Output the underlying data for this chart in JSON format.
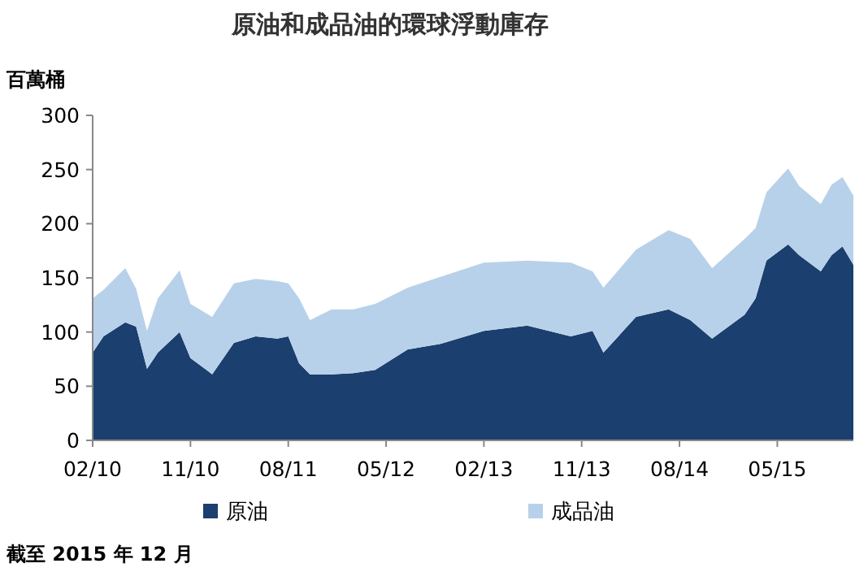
{
  "chart_data": {
    "type": "area",
    "stacked": true,
    "title": "原油和成品油的環球浮動庫存",
    "ylabel": "百萬桶",
    "annotations": [
      "截至 2015 年 12 月"
    ],
    "x": [
      "2010-02",
      "2010-03",
      "2010-05",
      "2010-06",
      "2010-07",
      "2010-08",
      "2010-10",
      "2010-11",
      "2011-01",
      "2011-03",
      "2011-05",
      "2011-07",
      "2011-08",
      "2011-09",
      "2011-10",
      "2011-12",
      "2012-02",
      "2012-04",
      "2012-07",
      "2012-10",
      "2013-02",
      "2013-06",
      "2013-10",
      "2013-12",
      "2014-01",
      "2014-04",
      "2014-07",
      "2014-09",
      "2014-11",
      "2015-02",
      "2015-03",
      "2015-04",
      "2015-06",
      "2015-07",
      "2015-09",
      "2015-10",
      "2015-11",
      "2015-12"
    ],
    "series": [
      {
        "name": "原油",
        "color": "#1b3f6e",
        "values": [
          81,
          96,
          109,
          105,
          66,
          81,
          100,
          76,
          61,
          90,
          96,
          94,
          96,
          71,
          61,
          61,
          62,
          65,
          84,
          89,
          101,
          106,
          96,
          101,
          81,
          114,
          121,
          111,
          94,
          116,
          131,
          166,
          181,
          171,
          156,
          171,
          179,
          162
        ]
      },
      {
        "name": "成品油",
        "color": "#b8d1ea",
        "values": [
          50,
          43,
          50,
          35,
          35,
          50,
          57,
          50,
          53,
          55,
          53,
          53,
          49,
          60,
          50,
          60,
          59,
          61,
          57,
          62,
          63,
          60,
          68,
          55,
          60,
          62,
          73,
          75,
          65,
          70,
          65,
          63,
          70,
          64,
          62,
          65,
          64,
          64
        ]
      }
    ],
    "xlim": [
      "2010-02",
      "2015-12"
    ],
    "xticks": [
      {
        "value": "2010-02",
        "label": "02/10"
      },
      {
        "value": "2010-11",
        "label": "11/10"
      },
      {
        "value": "2011-08",
        "label": "08/11"
      },
      {
        "value": "2012-05",
        "label": "05/12"
      },
      {
        "value": "2013-02",
        "label": "02/13"
      },
      {
        "value": "2013-11",
        "label": "11/13"
      },
      {
        "value": "2014-08",
        "label": "08/14"
      },
      {
        "value": "2015-05",
        "label": "05/15"
      }
    ],
    "ylim": [
      0,
      300
    ],
    "yticks": [
      0,
      50,
      100,
      150,
      200,
      250,
      300
    ],
    "grid": false,
    "legend": "bottom"
  }
}
